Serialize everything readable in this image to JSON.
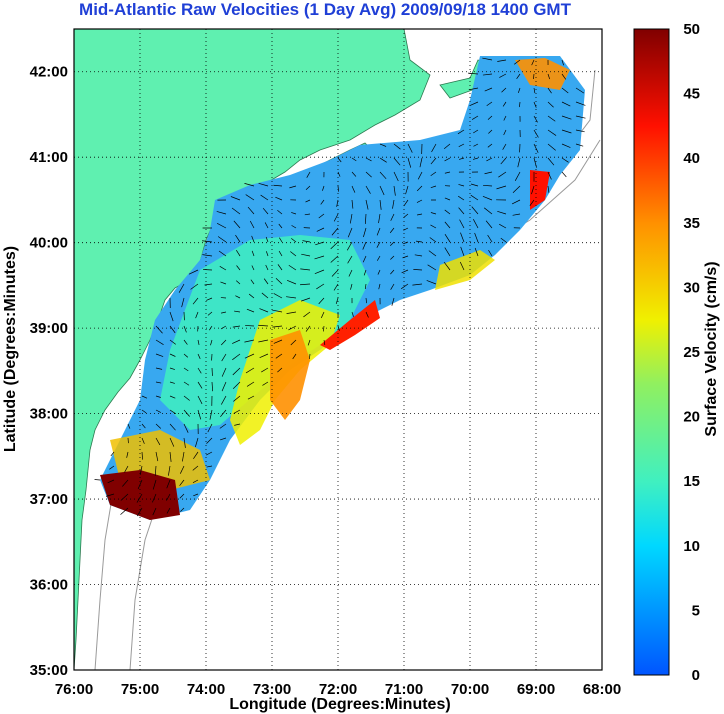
{
  "title": "Mid-Atlantic Raw Velocities (1 Day Avg) 2009/09/18 1400 GMT",
  "axes": {
    "xlabel": "Longitude (Degrees:Minutes)",
    "ylabel": "Latitude (Degrees:Minutes)",
    "x_ticks": [
      "76:00",
      "75:00",
      "74:00",
      "73:00",
      "72:00",
      "71:00",
      "70:00",
      "69:00",
      "68:00"
    ],
    "y_ticks": [
      "42:00",
      "41:00",
      "40:00",
      "39:00",
      "38:00",
      "37:00",
      "36:00",
      "35:00"
    ],
    "x_range": [
      -76,
      -68
    ],
    "y_range": [
      35,
      42.5
    ],
    "grid": "dotted"
  },
  "colorbar": {
    "label": "Surface Velocity (cm/s)",
    "ticks": [
      "50",
      "45",
      "40",
      "35",
      "30",
      "25",
      "20",
      "15",
      "10",
      "5",
      "0"
    ],
    "range": [
      0,
      50
    ]
  },
  "colors": {
    "land": "#5ff0b0",
    "title": "#1f3fd6"
  }
}
